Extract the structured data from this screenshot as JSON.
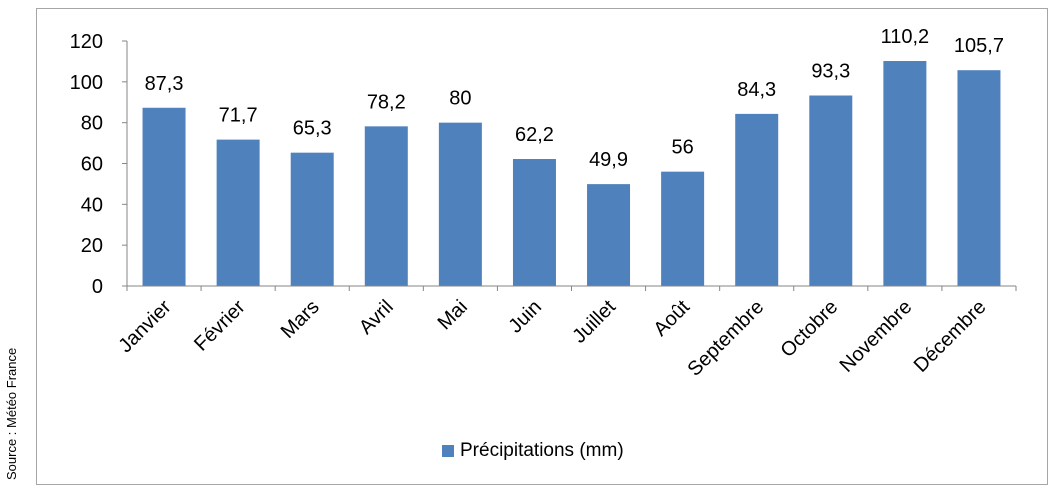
{
  "source_note": "Source : Météo France",
  "colors": {
    "bar": "#4f81bd",
    "axis": "#868686",
    "frame": "#a6a6a6"
  },
  "chart_data": {
    "type": "bar",
    "categories": [
      "Janvier",
      "Février",
      "Mars",
      "Avril",
      "Mai",
      "Juin",
      "Juillet",
      "Août",
      "Septembre",
      "Octobre",
      "Novembre",
      "Décembre"
    ],
    "series": [
      {
        "name": "Précipitations (mm)",
        "values": [
          87.3,
          71.7,
          65.3,
          78.2,
          80,
          62.2,
          49.9,
          56,
          84.3,
          93.3,
          110.2,
          105.7
        ],
        "labels": [
          "87,3",
          "71,7",
          "65,3",
          "78,2",
          "80",
          "62,2",
          "49,9",
          "56",
          "84,3",
          "93,3",
          "110,2",
          "105,7"
        ]
      }
    ],
    "ylim": [
      0,
      120
    ],
    "yticks": [
      0,
      20,
      40,
      60,
      80,
      100,
      120
    ],
    "grid": false,
    "legend_position": "bottom"
  }
}
